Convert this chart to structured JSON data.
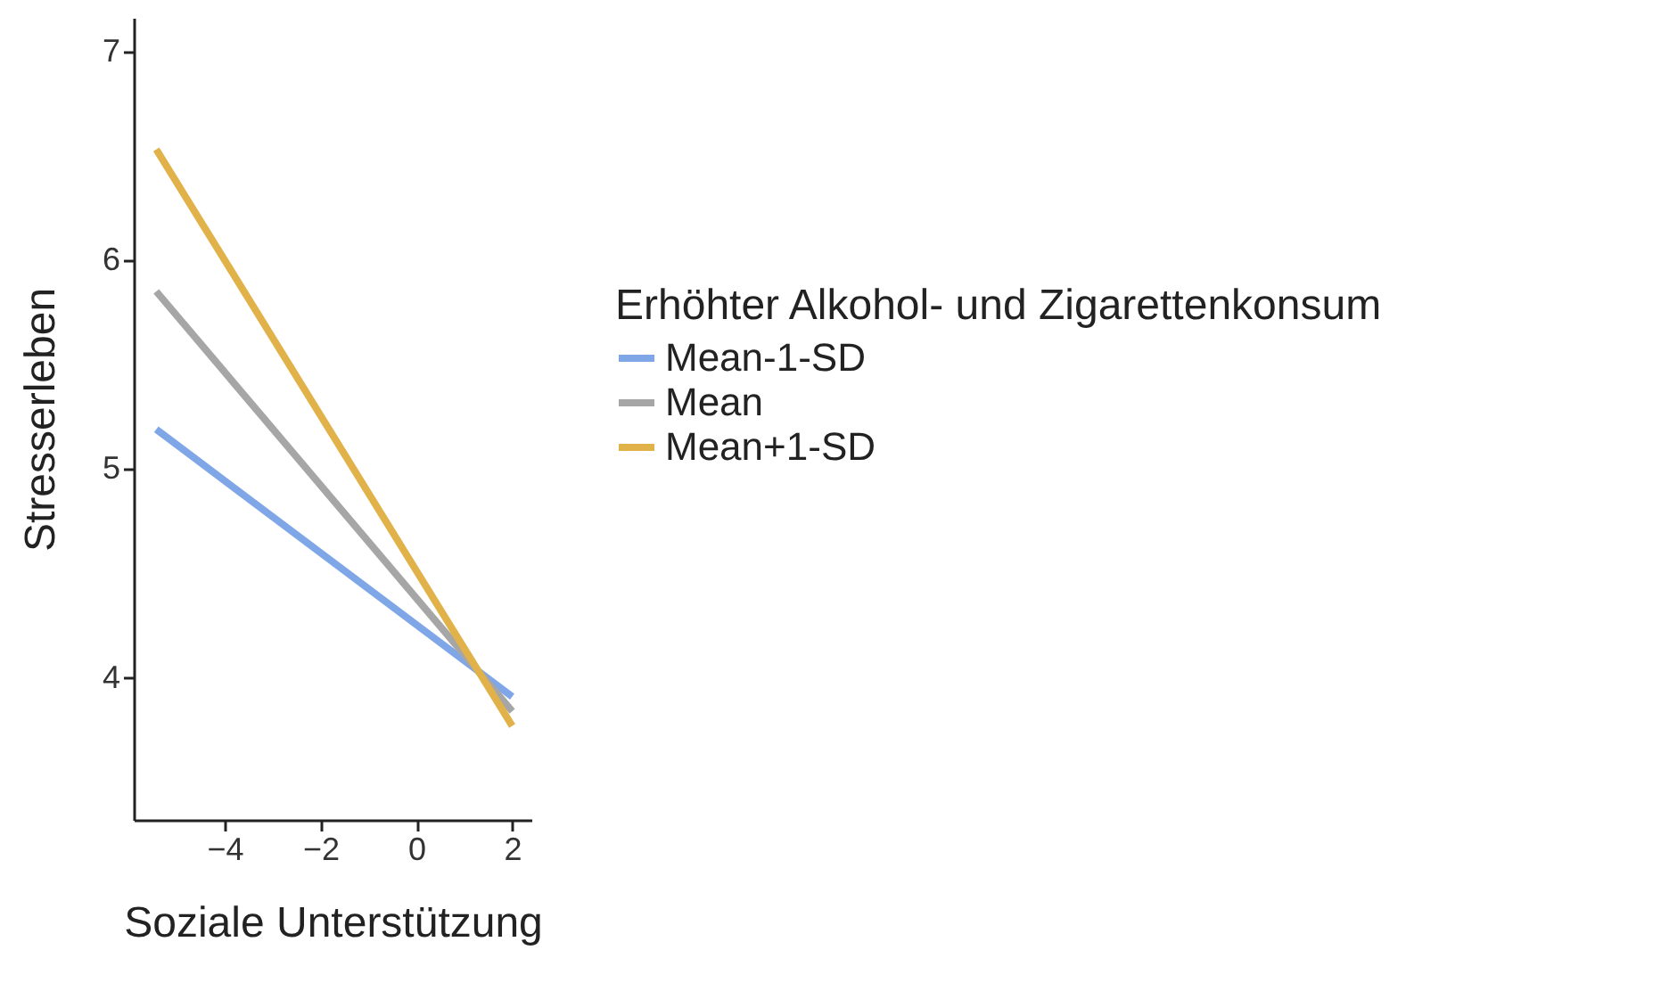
{
  "chart_data": {
    "type": "line",
    "xlabel": "Soziale Unterstützung",
    "ylabel": "Stresserleben",
    "legend_title": "Erhöhter Alkohol- und Zigarettenkonsum",
    "x": [
      -5.43,
      2.0
    ],
    "series": [
      {
        "name": "Mean-1-SD",
        "color": "#7fa6e6",
        "values": [
          5.19,
          3.91
        ]
      },
      {
        "name": "Mean",
        "color": "#a6a6a6",
        "values": [
          5.85,
          3.84
        ]
      },
      {
        "name": "Mean+1-SD",
        "color": "#e2b24a",
        "values": [
          6.53,
          3.77
        ]
      }
    ],
    "xlim": [
      -5.9,
      2.4
    ],
    "xticks": [
      -4,
      -2,
      0,
      2
    ],
    "ylim": [
      3.32,
      7.16
    ],
    "yticks": [
      4,
      5,
      6,
      7
    ],
    "grid": false,
    "legend": "right",
    "marker": "none",
    "line_style": "solid"
  }
}
